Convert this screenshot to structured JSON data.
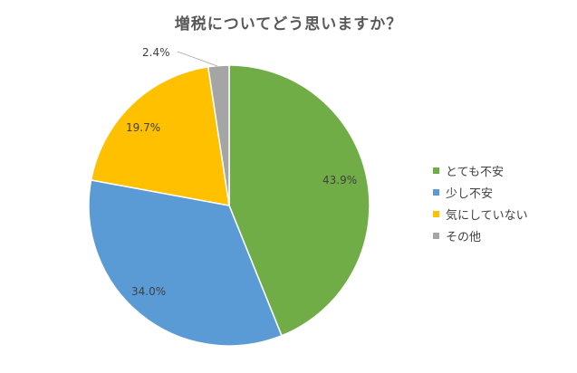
{
  "chart_data": {
    "type": "pie",
    "title": "増税についてどう思いますか？",
    "categories": [
      "とても不安",
      "少し不安",
      "気にしていない",
      "その他"
    ],
    "values": [
      43.9,
      34.0,
      19.7,
      2.4
    ],
    "labels": [
      "43.9%",
      "34.0%",
      "19.7%",
      "2.4%"
    ],
    "colors": [
      "#70AD47",
      "#5B9BD5",
      "#FFC000",
      "#A5A5A5"
    ],
    "start_angle_deg": 0,
    "direction": "clockwise",
    "legend_position": "right"
  },
  "title": "増税についてどう思いますか？",
  "legend": [
    {
      "label": "とても不安",
      "color": "#70AD47"
    },
    {
      "label": "少し不安",
      "color": "#5B9BD5"
    },
    {
      "label": "気にしていない",
      "color": "#FFC000"
    },
    {
      "label": "その他",
      "color": "#A5A5A5"
    }
  ]
}
